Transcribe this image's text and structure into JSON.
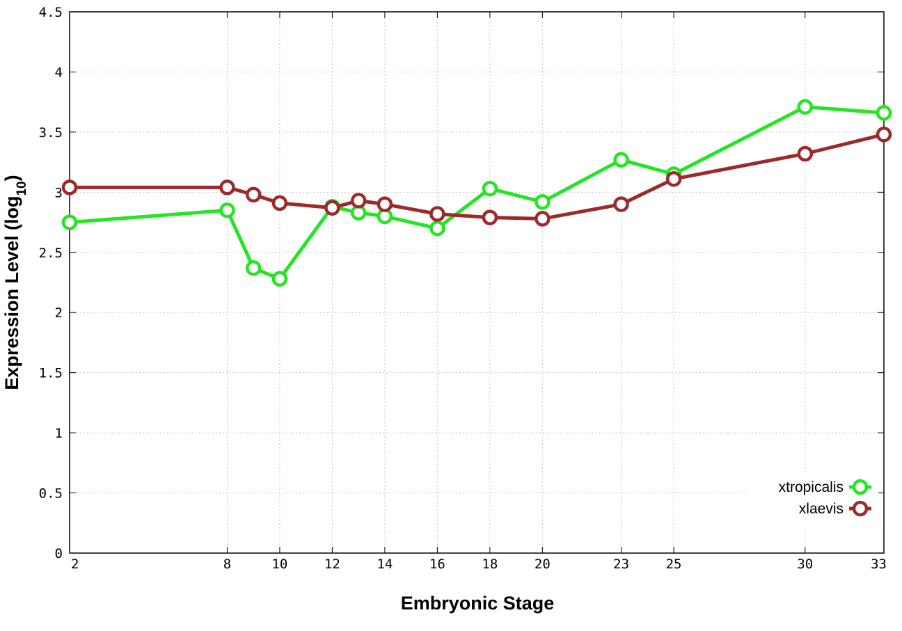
{
  "chart_data": {
    "type": "line",
    "xlabel": "Embryonic Stage",
    "ylabel_main": "Expression Level (log",
    "ylabel_sub": "10",
    "ylabel_close": ")",
    "x_ticks": [
      2,
      8,
      10,
      12,
      14,
      16,
      18,
      20,
      23,
      25,
      30,
      33
    ],
    "y_ticks": [
      "0",
      "0.5",
      "1",
      "1.5",
      "2",
      "2.5",
      "3",
      "3.5",
      "4",
      "4.5"
    ],
    "xlim": [
      2,
      33
    ],
    "ylim": [
      0,
      4.5
    ],
    "grid": true,
    "legend_position": "bottom-right",
    "x": [
      2,
      8,
      9,
      10,
      12,
      13,
      14,
      16,
      18,
      20,
      23,
      25,
      30,
      33
    ],
    "series": [
      {
        "name": "xtropicalis",
        "color": "#22e622",
        "values": [
          2.75,
          2.85,
          2.37,
          2.28,
          2.88,
          2.83,
          2.8,
          2.7,
          3.03,
          2.92,
          3.27,
          3.15,
          3.71,
          3.66
        ]
      },
      {
        "name": "xlaevis",
        "color": "#9b2a2a",
        "values": [
          3.04,
          3.04,
          2.98,
          2.91,
          2.87,
          2.93,
          2.9,
          2.82,
          2.79,
          2.78,
          2.9,
          3.11,
          3.32,
          3.48
        ]
      }
    ]
  }
}
